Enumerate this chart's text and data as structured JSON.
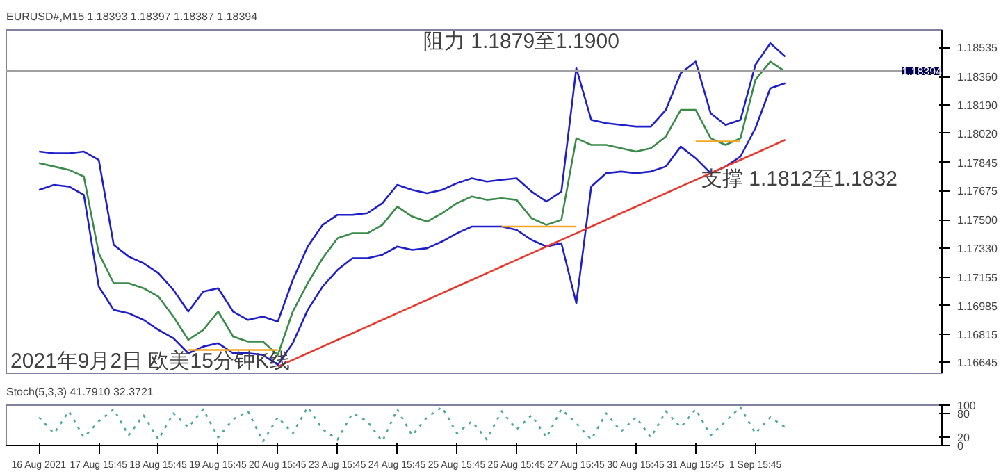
{
  "chart_data": [
    {
      "type": "line",
      "title": "EURUSD#,M15 1.18393 1.18397 1.18387 1.18394",
      "categories": [
        null,
        null,
        null,
        null,
        null,
        null,
        null,
        null,
        null,
        null,
        null,
        null,
        null,
        null,
        null,
        null,
        null,
        null,
        null,
        null,
        null,
        null,
        null,
        null,
        null,
        null,
        null,
        null,
        null,
        null,
        null,
        null,
        null,
        null,
        null,
        null,
        null,
        null,
        null,
        null,
        null,
        null,
        null,
        null,
        null,
        null,
        null,
        null,
        null,
        null,
        null
      ],
      "series": [
        {
          "color": "#1f1fc8",
          "values": [
            1.1791,
            1.179,
            1.179,
            1.1791,
            1.1786,
            1.1735,
            1.1728,
            1.1724,
            1.1718,
            1.1708,
            1.1695,
            1.1707,
            1.1709,
            1.1695,
            1.169,
            1.1692,
            1.1689,
            1.1714,
            1.1734,
            1.1747,
            1.1753,
            1.1753,
            1.1754,
            1.176,
            1.1771,
            1.1768,
            1.1766,
            1.1768,
            1.1772,
            1.1775,
            1.1773,
            1.1774,
            1.1775,
            1.1767,
            1.1761,
            1.1767,
            1.1841,
            1.181,
            1.1808,
            1.1807,
            1.1806,
            1.1806,
            1.1816,
            1.1838,
            1.1845,
            1.1814,
            1.1807,
            1.181,
            1.1843,
            1.1856,
            1.1848
          ]
        },
        {
          "color": "#3a8a4a",
          "values": [
            1.1784,
            1.1782,
            1.178,
            1.1776,
            1.173,
            1.1712,
            1.1712,
            1.1709,
            1.1704,
            1.1692,
            1.1678,
            1.1684,
            1.1695,
            1.168,
            1.1677,
            1.1677,
            1.1669,
            1.1695,
            1.1712,
            1.1727,
            1.1739,
            1.1742,
            1.1742,
            1.1747,
            1.1758,
            1.1752,
            1.1749,
            1.1754,
            1.176,
            1.1764,
            1.1762,
            1.1763,
            1.1762,
            1.1751,
            1.1747,
            1.175,
            1.1799,
            1.1795,
            1.1795,
            1.1793,
            1.1791,
            1.1793,
            1.18,
            1.1816,
            1.1816,
            1.1799,
            1.1795,
            1.1799,
            1.1834,
            1.1845,
            1.1839
          ]
        },
        {
          "color": "#1f1fc8",
          "values": [
            1.1768,
            1.1771,
            1.177,
            1.1765,
            1.171,
            1.1696,
            1.1694,
            1.169,
            1.1684,
            1.1679,
            1.167,
            1.1674,
            1.1676,
            1.167,
            1.167,
            1.1669,
            1.1663,
            1.1676,
            1.1696,
            1.171,
            1.172,
            1.1727,
            1.1727,
            1.1729,
            1.1734,
            1.1732,
            1.1733,
            1.1737,
            1.1742,
            1.1746,
            1.1746,
            1.1746,
            1.1744,
            1.1738,
            1.1734,
            1.1736,
            1.17,
            1.177,
            1.1778,
            1.1779,
            1.1778,
            1.1779,
            1.1782,
            1.1794,
            1.1787,
            1.1778,
            1.1782,
            1.1788,
            1.1805,
            1.1829,
            1.1832
          ]
        },
        {
          "color": "#e8372b",
          "values": [
            null,
            null,
            null,
            null,
            null,
            null,
            null,
            null,
            null,
            null,
            null,
            null,
            null,
            null,
            null,
            null,
            1.1662,
            1.1666,
            1.167,
            1.1674,
            1.1678,
            1.1682,
            1.1686,
            1.169,
            1.1694,
            1.1698,
            1.1702,
            1.1706,
            1.171,
            1.1714,
            1.1718,
            1.1722,
            1.1726,
            1.173,
            1.1734,
            1.1738,
            1.1742,
            1.1746,
            1.175,
            1.1754,
            1.1758,
            1.1762,
            1.1766,
            1.177,
            1.1774,
            1.1778,
            1.1782,
            1.1786,
            1.179,
            1.1794,
            1.1798
          ]
        },
        {
          "color": "#f5a623",
          "values": [
            null,
            null,
            null,
            null,
            null,
            null,
            null,
            null,
            null,
            null,
            1.1672,
            1.1672,
            1.1672,
            1.1672,
            1.1672,
            1.1672,
            1.1672,
            null,
            null,
            null,
            null,
            null,
            null,
            null,
            null,
            null,
            null,
            null,
            null,
            null,
            null,
            1.1746,
            1.1746,
            1.1746,
            1.1746,
            1.1746,
            1.1746,
            null,
            null,
            null,
            null,
            null,
            null,
            null,
            1.1797,
            1.1797,
            1.1797,
            1.1797,
            null,
            null,
            null
          ]
        }
      ],
      "ylim": [
        1.1658,
        1.1864
      ],
      "yticks": [
        {
          "value": 1.18535,
          "label": "1.18535"
        },
        {
          "value": 1.1836,
          "label": "1.18360"
        },
        {
          "value": 1.1819,
          "label": "1.18190"
        },
        {
          "value": 1.1802,
          "label": "1.18020"
        },
        {
          "value": 1.17845,
          "label": "1.17845"
        },
        {
          "value": 1.17675,
          "label": "1.17675"
        },
        {
          "value": 1.175,
          "label": "1.17500"
        },
        {
          "value": 1.1733,
          "label": "1.17330"
        },
        {
          "value": 1.17155,
          "label": "1.17155"
        },
        {
          "value": 1.16985,
          "label": "1.16985"
        },
        {
          "value": 1.16815,
          "label": "1.16815"
        },
        {
          "value": 1.16645,
          "label": "1.16645"
        }
      ],
      "ref_lines": [
        {
          "axis": "y",
          "value": 1.18394,
          "label": "1.18394",
          "color": "#a0a0a0"
        }
      ],
      "annotations": [
        "阻力 1.1879至1.1900",
        "支撑 1.1812至1.1832",
        "2021年9月2日 欧美15分钟K线"
      ],
      "tick_labels": "y",
      "grid": false,
      "line_style": "solid"
    },
    {
      "type": "line",
      "title": "Stoch(5,3,3) 41.7910 32.3721",
      "categories": [
        "16 Aug 2021",
        null,
        null,
        null,
        "17 Aug 15:45",
        null,
        null,
        null,
        "18 Aug 15:45",
        null,
        null,
        null,
        "19 Aug 15:45",
        null,
        null,
        null,
        "20 Aug 15:45",
        null,
        null,
        null,
        "23 Aug 15:45",
        null,
        null,
        null,
        "24 Aug 15:45",
        null,
        null,
        null,
        "25 Aug 15:45",
        null,
        null,
        null,
        "26 Aug 15:45",
        null,
        null,
        null,
        "27 Aug 15:45",
        null,
        null,
        null,
        "30 Aug 15:45",
        null,
        null,
        null,
        "31 Aug 15:45",
        null,
        null,
        null,
        "1 Sep 15:45",
        null,
        null
      ],
      "series": [
        {
          "color": "#4aa89a",
          "values": [
            70,
            30,
            85,
            20,
            60,
            90,
            25,
            75,
            15,
            80,
            45,
            90,
            20,
            65,
            85,
            10,
            70,
            30,
            95,
            40,
            15,
            80,
            60,
            10,
            90,
            25,
            70,
            95,
            30,
            60,
            15,
            85,
            40,
            75,
            20,
            90,
            55,
            15,
            80,
            35,
            70,
            20,
            85,
            45,
            90,
            25,
            60,
            95,
            30,
            70,
            45
          ]
        }
      ],
      "ylim": [
        0,
        100
      ],
      "yticks": [
        0,
        20,
        80,
        100
      ],
      "grid": false,
      "line_style": "dotted"
    }
  ]
}
